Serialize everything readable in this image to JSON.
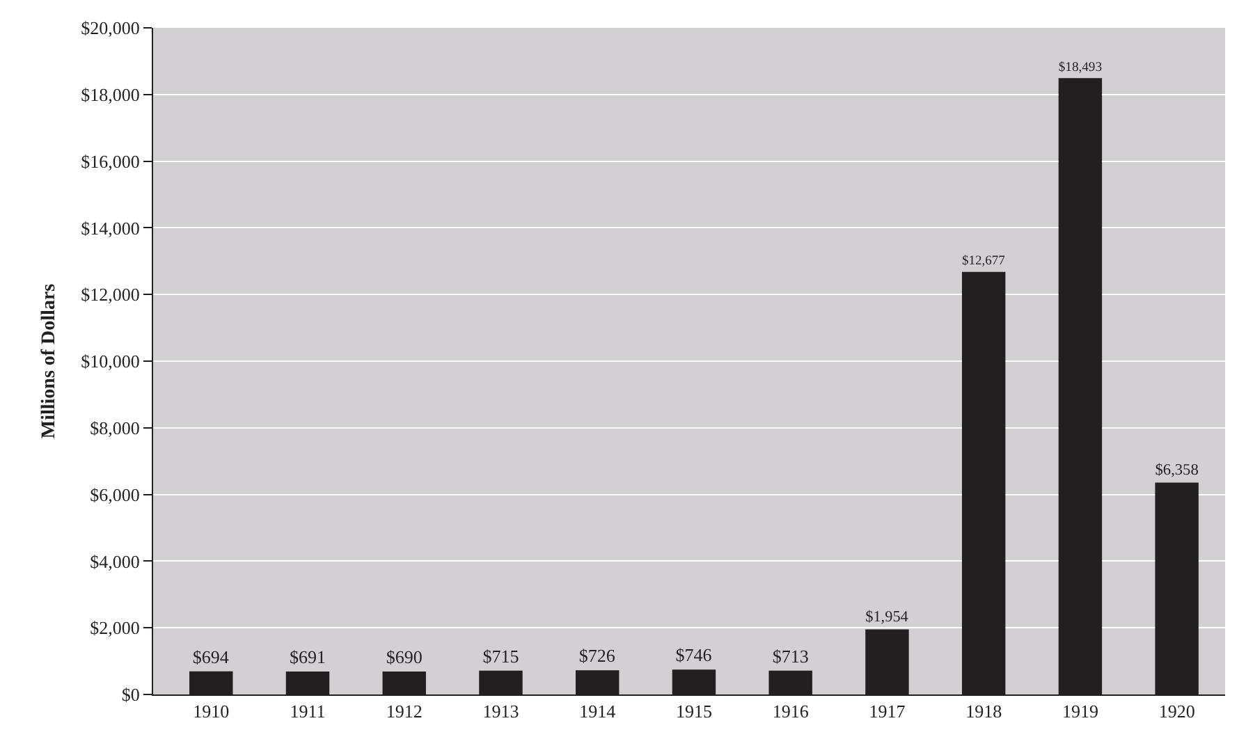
{
  "chart_data": {
    "type": "bar",
    "ylabel": "Millions of Dollars",
    "categories": [
      "1910",
      "1911",
      "1912",
      "1913",
      "1914",
      "1915",
      "1916",
      "1917",
      "1918",
      "1919",
      "1920"
    ],
    "values": [
      694,
      691,
      690,
      715,
      726,
      746,
      713,
      1954,
      12677,
      18493,
      6358
    ],
    "value_labels": [
      "$694",
      "$691",
      "$690",
      "$715",
      "$726",
      "$746",
      "$713",
      "$1,954",
      "$12,677",
      "$18,493",
      "$6,358"
    ],
    "color": "#231f20",
    "ylim": [
      0,
      20000
    ],
    "yticks": [
      {
        "value": 0,
        "label": "$0"
      },
      {
        "value": 2000,
        "label": "$2,000"
      },
      {
        "value": 4000,
        "label": "$4,000"
      },
      {
        "value": 6000,
        "label": "$6,000"
      },
      {
        "value": 8000,
        "label": "$8,000"
      },
      {
        "value": 10000,
        "label": "$10,000"
      },
      {
        "value": 12000,
        "label": "$12,000"
      },
      {
        "value": 14000,
        "label": "$14,000"
      },
      {
        "value": 16000,
        "label": "$16,000"
      },
      {
        "value": 18000,
        "label": "$18,000"
      },
      {
        "value": 20000,
        "label": "$20,000"
      }
    ],
    "grid": "y",
    "legend": false
  }
}
